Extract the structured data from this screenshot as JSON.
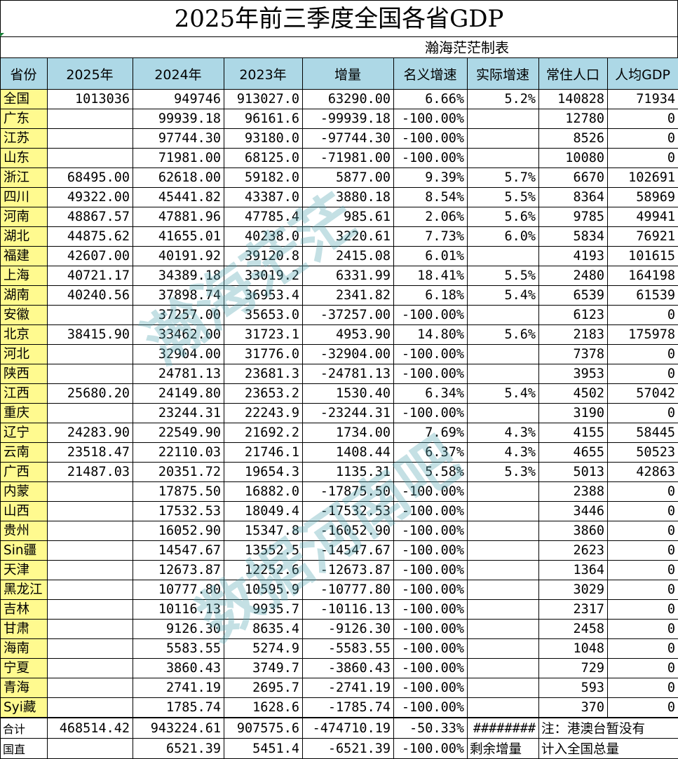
{
  "title": "2025年前三季度全国各省GDP",
  "maker": "瀚海茫茫制表",
  "headers": [
    "省份",
    "2025年",
    "2024年",
    "2023年",
    "增量",
    "名义增速",
    "实际增速",
    "常住人口",
    "人均GDP"
  ],
  "rows": [
    [
      "全国",
      "1013036",
      "949746",
      "913027.0",
      "63290.00",
      "6.66%",
      "5.2%",
      "140828",
      "71934"
    ],
    [
      "广东",
      "",
      "99939.18",
      "96161.6",
      "-99939.18",
      "-100.00%",
      "",
      "12780",
      "0"
    ],
    [
      "江苏",
      "",
      "97744.30",
      "93180.0",
      "-97744.30",
      "-100.00%",
      "",
      "8526",
      "0"
    ],
    [
      "山东",
      "",
      "71981.00",
      "68125.0",
      "-71981.00",
      "-100.00%",
      "",
      "10080",
      "0"
    ],
    [
      "浙江",
      "68495.00",
      "62618.00",
      "59182.0",
      "5877.00",
      "9.39%",
      "5.7%",
      "6670",
      "102691"
    ],
    [
      "四川",
      "49322.00",
      "45441.82",
      "43387.0",
      "3880.18",
      "8.54%",
      "5.5%",
      "8364",
      "58969"
    ],
    [
      "河南",
      "48867.57",
      "47881.96",
      "47785.4",
      "985.61",
      "2.06%",
      "5.6%",
      "9785",
      "49941"
    ],
    [
      "湖北",
      "44875.62",
      "41655.01",
      "40238.0",
      "3220.61",
      "7.73%",
      "6.0%",
      "5834",
      "76921"
    ],
    [
      "福建",
      "42607.00",
      "40191.92",
      "39120.8",
      "2415.08",
      "6.01%",
      "",
      "4193",
      "101615"
    ],
    [
      "上海",
      "40721.17",
      "34389.18",
      "33019.2",
      "6331.99",
      "18.41%",
      "5.5%",
      "2480",
      "164198"
    ],
    [
      "湖南",
      "40240.56",
      "37898.74",
      "36953.4",
      "2341.82",
      "6.18%",
      "5.4%",
      "6539",
      "61539"
    ],
    [
      "安徽",
      "",
      "37257.00",
      "35653.0",
      "-37257.00",
      "-100.00%",
      "",
      "6123",
      "0"
    ],
    [
      "北京",
      "38415.90",
      "33462.00",
      "31723.1",
      "4953.90",
      "14.80%",
      "5.6%",
      "2183",
      "175978"
    ],
    [
      "河北",
      "",
      "32904.00",
      "31776.0",
      "-32904.00",
      "-100.00%",
      "",
      "7378",
      "0"
    ],
    [
      "陕西",
      "",
      "24781.13",
      "23681.3",
      "-24781.13",
      "-100.00%",
      "",
      "3953",
      "0"
    ],
    [
      "江西",
      "25680.20",
      "24149.80",
      "23653.2",
      "1530.40",
      "6.34%",
      "5.4%",
      "4502",
      "57042"
    ],
    [
      "重庆",
      "",
      "23244.31",
      "22243.9",
      "-23244.31",
      "-100.00%",
      "",
      "3190",
      "0"
    ],
    [
      "辽宁",
      "24283.90",
      "22549.90",
      "21692.2",
      "1734.00",
      "7.69%",
      "4.3%",
      "4155",
      "58445"
    ],
    [
      "云南",
      "23518.47",
      "22110.03",
      "21746.1",
      "1408.44",
      "6.37%",
      "4.3%",
      "4655",
      "50523"
    ],
    [
      "广西",
      "21487.03",
      "20351.72",
      "19654.3",
      "1135.31",
      "5.58%",
      "5.3%",
      "5013",
      "42863"
    ],
    [
      "内蒙",
      "",
      "17875.50",
      "16882.0",
      "-17875.50",
      "-100.00%",
      "",
      "2388",
      "0"
    ],
    [
      "山西",
      "",
      "17532.53",
      "18049.4",
      "-17532.53",
      "-100.00%",
      "",
      "3446",
      "0"
    ],
    [
      "贵州",
      "",
      "16052.90",
      "15347.8",
      "-16052.90",
      "-100.00%",
      "",
      "3860",
      "0"
    ],
    [
      "Sin疆",
      "",
      "14547.67",
      "13552.5",
      "-14547.67",
      "-100.00%",
      "",
      "2623",
      "0"
    ],
    [
      "天津",
      "",
      "12673.87",
      "12252.6",
      "-12673.87",
      "-100.00%",
      "",
      "1364",
      "0"
    ],
    [
      "黑龙江",
      "",
      "10777.80",
      "10595.9",
      "-10777.80",
      "-100.00%",
      "",
      "3029",
      "0"
    ],
    [
      "吉林",
      "",
      "10116.13",
      "9935.7",
      "-10116.13",
      "-100.00%",
      "",
      "2317",
      "0"
    ],
    [
      "甘肃",
      "",
      "9126.30",
      "8635.4",
      "-9126.30",
      "-100.00%",
      "",
      "2458",
      "0"
    ],
    [
      "海南",
      "",
      "5583.55",
      "5274.9",
      "-5583.55",
      "-100.00%",
      "",
      "1048",
      "0"
    ],
    [
      "宁夏",
      "",
      "3860.43",
      "3749.7",
      "-3860.43",
      "-100.00%",
      "",
      "729",
      "0"
    ],
    [
      "青海",
      "",
      "2741.19",
      "2695.7",
      "-2741.19",
      "-100.00%",
      "",
      "593",
      "0"
    ],
    [
      "Syi藏",
      "",
      "1785.74",
      "1628.6",
      "-1785.74",
      "-100.00%",
      "",
      "370",
      "0"
    ]
  ],
  "total_row": [
    "合计",
    "468514.42",
    "943224.61",
    "907575.6",
    "-474710.19",
    "-50.33%",
    "########"
  ],
  "guozhi_row": [
    "国直",
    "",
    "6521.39",
    "5451.4",
    "-6521.39",
    "-100.00%",
    "剩余增量"
  ],
  "note_line1": "注：港澳台暂没有",
  "note_line2": "计入全国总量",
  "watermark_1": "瀚海茫茫",
  "watermark_2": "数据河南吧"
}
